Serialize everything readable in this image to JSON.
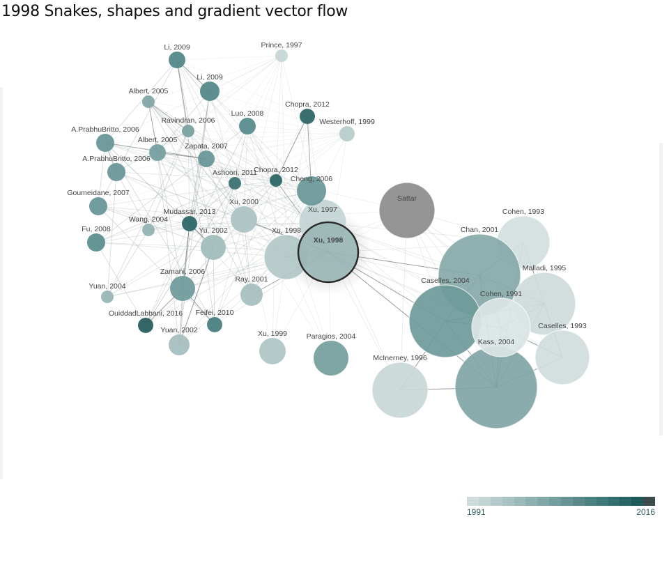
{
  "page": {
    "title": "1998 Snakes, shapes and gradient vector flow"
  },
  "legend": {
    "min_label": "1991",
    "max_label": "2016",
    "colors": [
      "#cfdcdc",
      "#c2d4d4",
      "#b5cbcb",
      "#a8c2c2",
      "#9bb9b9",
      "#8eb0b0",
      "#81a6a6",
      "#749d9d",
      "#679494",
      "#5a8a8a",
      "#4d8282",
      "#407979",
      "#346f6f",
      "#286666",
      "#1f5a5a",
      "#3b4a4a"
    ]
  },
  "graph": {
    "nodes": [
      {
        "id": "n_li2009a",
        "label": "Li, 2009",
        "color": "#54898a"
      },
      {
        "id": "n_prince",
        "label": "Prince, 1997",
        "color": "#c6d7d7"
      },
      {
        "id": "n_li2009b",
        "label": "Li, 2009",
        "color": "#54898a"
      },
      {
        "id": "n_albert05a",
        "label": "Albert, 2005",
        "color": "#82a7a7"
      },
      {
        "id": "n_ravindran",
        "label": "Ravindran, 2006",
        "color": "#7aa1a1"
      },
      {
        "id": "n_luo",
        "label": "Luo, 2008",
        "color": "#5a8c8d"
      },
      {
        "id": "n_chopra12a",
        "label": "Chopra, 2012",
        "color": "#2e6767"
      },
      {
        "id": "n_westerhoff",
        "label": "Westerhoff, 1999",
        "color": "#b8cccc"
      },
      {
        "id": "n_aprab06a",
        "label": "A.PrabhuBritto, 2006",
        "color": "#6a9798"
      },
      {
        "id": "n_albert05b",
        "label": "Albert, 2005",
        "color": "#77a0a0"
      },
      {
        "id": "n_zapata",
        "label": "Zapata, 2007",
        "color": "#6a9798"
      },
      {
        "id": "n_aprab06b",
        "label": "A.PrabhuBritto, 2006",
        "color": "#6a9798"
      },
      {
        "id": "n_ashoori",
        "label": "Ashoori, 2011",
        "color": "#3d7273"
      },
      {
        "id": "n_chopra12b",
        "label": "Chopra, 2012",
        "color": "#2e6767"
      },
      {
        "id": "n_cheng",
        "label": "Cheng, 2006",
        "color": "#6e9a9a"
      },
      {
        "id": "n_goumeidane",
        "label": "Goumeidane, 2007",
        "color": "#6a9798"
      },
      {
        "id": "n_xu1997",
        "label": "Xu, 1997",
        "color": "#c3d4d4"
      },
      {
        "id": "n_sattar",
        "label": "Sattar",
        "color": "#8c8c8c"
      },
      {
        "id": "n_mudassar",
        "label": "Mudassar, 2013",
        "color": "#2e6767"
      },
      {
        "id": "n_xu2000",
        "label": "Xu, 2000",
        "color": "#adc4c4"
      },
      {
        "id": "n_wang",
        "label": "Wang, 2004",
        "color": "#95b3b3"
      },
      {
        "id": "n_fu",
        "label": "Fu, 2008",
        "color": "#5e8f8f"
      },
      {
        "id": "n_yu2002",
        "label": "Yu, 2002",
        "color": "#a2bdbd"
      },
      {
        "id": "n_xu1998b",
        "label": "Xu, 1998",
        "color": "#b3c8c8"
      },
      {
        "id": "n_xu1998",
        "label": "Xu, 1998",
        "color": "#9bb6b6"
      },
      {
        "id": "n_cohen1993",
        "label": "Cohen, 1993",
        "color": "#d2dfdf"
      },
      {
        "id": "n_chan",
        "label": "Chan, 2001",
        "color": "#87a9a9"
      },
      {
        "id": "n_zamani",
        "label": "Zamani, 2006",
        "color": "#729c9c"
      },
      {
        "id": "n_ray",
        "label": "Ray, 2001",
        "color": "#a8c0c0"
      },
      {
        "id": "n_malladi",
        "label": "Malladi, 1995",
        "color": "#cedbdb"
      },
      {
        "id": "n_yuan2004",
        "label": "Yuan, 2004",
        "color": "#9ab6b6"
      },
      {
        "id": "n_caselles04",
        "label": "Caselles, 2004",
        "color": "#6f9a9a"
      },
      {
        "id": "n_cohen1991",
        "label": "Cohen, 1991",
        "color": "#dbe5e5"
      },
      {
        "id": "n_ouiddad",
        "label": "OuiddadLabbani, 2016",
        "color": "#2a5f5f"
      },
      {
        "id": "n_feifei",
        "label": "Feifei, 2010",
        "color": "#4b8081"
      },
      {
        "id": "n_caselles93",
        "label": "Caselles, 1993",
        "color": "#d0dcdc"
      },
      {
        "id": "n_yuan2002",
        "label": "Yuan, 2002",
        "color": "#a6bfbf"
      },
      {
        "id": "n_xu1999",
        "label": "Xu, 1999",
        "color": "#b0c6c6"
      },
      {
        "id": "n_paragios",
        "label": "Paragios, 2004",
        "color": "#79a0a0"
      },
      {
        "id": "n_mcinerney",
        "label": "McInerney, 1996",
        "color": "#c8d7d7"
      },
      {
        "id": "n_kass",
        "label": "Kass, 2004",
        "color": "#81a5a5"
      }
    ]
  }
}
